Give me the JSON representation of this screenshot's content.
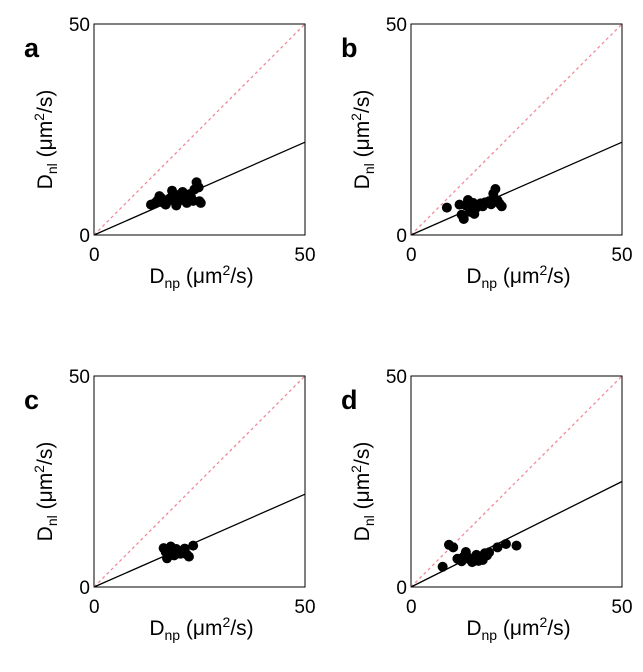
{
  "chart_data": [
    {
      "type": "scatter",
      "panel_label": "a",
      "xlabel": {
        "main": "D",
        "sub": "np",
        "unit_pre": " (μm",
        "sup": "2",
        "unit_post": "/s)"
      },
      "ylabel": {
        "main": "D",
        "sub": "nl",
        "unit_pre": " (μm",
        "sup": "2",
        "unit_post": "/s)"
      },
      "xlim": [
        0,
        50
      ],
      "ylim": [
        0,
        50
      ],
      "xticks": [
        "0",
        "50"
      ],
      "yticks": [
        "0",
        "50"
      ],
      "identity_line": {
        "style": "dashed",
        "color": "#f08a9a"
      },
      "fit_line": {
        "slope": 0.44,
        "color": "#000000"
      },
      "marker_color": "#000000",
      "points": [
        [
          13.5,
          7.2
        ],
        [
          14.5,
          7.6
        ],
        [
          15.0,
          8.1
        ],
        [
          15.5,
          9.2
        ],
        [
          16.0,
          8.7
        ],
        [
          16.5,
          7.6
        ],
        [
          17.0,
          7.2
        ],
        [
          17.5,
          8.0
        ],
        [
          18.0,
          8.7
        ],
        [
          18.5,
          10.5
        ],
        [
          19.0,
          9.5
        ],
        [
          19.5,
          7.0
        ],
        [
          20.0,
          8.0
        ],
        [
          20.5,
          9.7
        ],
        [
          21.0,
          10.2
        ],
        [
          21.5,
          8.5
        ],
        [
          22.0,
          7.6
        ],
        [
          22.5,
          8.8
        ],
        [
          23.0,
          9.0
        ],
        [
          23.5,
          8.1
        ],
        [
          23.8,
          10.8
        ],
        [
          24.3,
          12.5
        ],
        [
          24.8,
          11.3
        ],
        [
          25.0,
          8.0
        ],
        [
          25.3,
          7.6
        ],
        [
          22.7,
          9.7
        ]
      ]
    },
    {
      "type": "scatter",
      "panel_label": "b",
      "xlabel": {
        "main": "D",
        "sub": "np",
        "unit_pre": " (μm",
        "sup": "2",
        "unit_post": "/s)"
      },
      "ylabel": {
        "main": "D",
        "sub": "nl",
        "unit_pre": " (μm",
        "sup": "2",
        "unit_post": "/s)"
      },
      "xlim": [
        0,
        50
      ],
      "ylim": [
        0,
        50
      ],
      "xticks": [
        "0",
        "50"
      ],
      "yticks": [
        "0",
        "50"
      ],
      "identity_line": {
        "style": "dashed",
        "color": "#f08a9a"
      },
      "fit_line": {
        "slope": 0.44,
        "color": "#000000"
      },
      "marker_color": "#000000",
      "points": [
        [
          8.5,
          6.5
        ],
        [
          11.5,
          7.2
        ],
        [
          12.0,
          4.8
        ],
        [
          12.5,
          3.8
        ],
        [
          13.0,
          7.0
        ],
        [
          13.5,
          8.3
        ],
        [
          14.0,
          5.5
        ],
        [
          14.3,
          6.8
        ],
        [
          14.7,
          7.6
        ],
        [
          15.0,
          5.0
        ],
        [
          15.5,
          6.5
        ],
        [
          16.0,
          7.0
        ],
        [
          16.5,
          7.5
        ],
        [
          17.0,
          6.8
        ],
        [
          17.5,
          7.7
        ],
        [
          18.0,
          7.8
        ],
        [
          18.5,
          8.0
        ],
        [
          19.0,
          7.3
        ],
        [
          19.5,
          9.8
        ],
        [
          20.0,
          10.9
        ],
        [
          20.5,
          8.2
        ],
        [
          21.0,
          7.4
        ],
        [
          21.5,
          6.8
        ]
      ]
    },
    {
      "type": "scatter",
      "panel_label": "c",
      "xlabel": {
        "main": "D",
        "sub": "np",
        "unit_pre": " (μm",
        "sup": "2",
        "unit_post": "/s)"
      },
      "ylabel": {
        "main": "D",
        "sub": "nl",
        "unit_pre": " (μm",
        "sup": "2",
        "unit_post": "/s)"
      },
      "xlim": [
        0,
        50
      ],
      "ylim": [
        0,
        50
      ],
      "xticks": [
        "0",
        "50"
      ],
      "yticks": [
        "0",
        "50"
      ],
      "identity_line": {
        "style": "dashed",
        "color": "#f08a9a"
      },
      "fit_line": {
        "slope": 0.44,
        "color": "#000000"
      },
      "marker_color": "#000000",
      "points": [
        [
          16.5,
          9.2
        ],
        [
          17.0,
          8.3
        ],
        [
          17.3,
          6.8
        ],
        [
          17.8,
          7.6
        ],
        [
          18.2,
          9.6
        ],
        [
          18.6,
          8.0
        ],
        [
          19.0,
          7.5
        ],
        [
          19.5,
          9.0
        ],
        [
          20.0,
          8.4
        ],
        [
          20.5,
          7.9
        ],
        [
          21.0,
          8.6
        ],
        [
          21.5,
          9.1
        ],
        [
          22.0,
          7.7
        ],
        [
          22.5,
          7.2
        ],
        [
          23.5,
          9.8
        ]
      ]
    },
    {
      "type": "scatter",
      "panel_label": "d",
      "xlabel": {
        "main": "D",
        "sub": "np",
        "unit_pre": " (μm",
        "sup": "2",
        "unit_post": "/s)"
      },
      "ylabel": {
        "main": "D",
        "sub": "nl",
        "unit_pre": " (μm",
        "sup": "2",
        "unit_post": "/s)"
      },
      "xlim": [
        0,
        50
      ],
      "ylim": [
        0,
        50
      ],
      "xticks": [
        "0",
        "50"
      ],
      "yticks": [
        "0",
        "50"
      ],
      "identity_line": {
        "style": "dashed",
        "color": "#f08a9a"
      },
      "fit_line": {
        "slope": 0.5,
        "color": "#000000"
      },
      "marker_color": "#000000",
      "points": [
        [
          7.5,
          4.8
        ],
        [
          9.0,
          10.0
        ],
        [
          10.0,
          9.4
        ],
        [
          11.0,
          6.7
        ],
        [
          12.0,
          6.1
        ],
        [
          12.5,
          7.2
        ],
        [
          13.0,
          8.3
        ],
        [
          13.5,
          7.0
        ],
        [
          14.0,
          6.5
        ],
        [
          14.5,
          5.9
        ],
        [
          15.0,
          6.7
        ],
        [
          15.5,
          7.6
        ],
        [
          16.0,
          6.2
        ],
        [
          16.5,
          7.0
        ],
        [
          17.0,
          6.4
        ],
        [
          17.5,
          8.0
        ],
        [
          18.0,
          7.5
        ],
        [
          18.5,
          8.2
        ],
        [
          20.5,
          9.4
        ],
        [
          22.5,
          10.2
        ],
        [
          25.0,
          9.8
        ]
      ]
    }
  ]
}
